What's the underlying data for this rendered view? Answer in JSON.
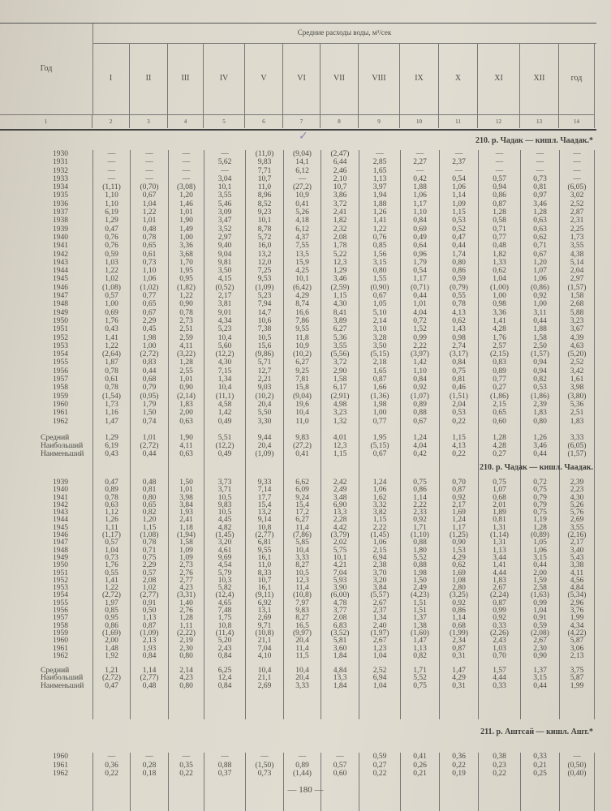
{
  "header": {
    "year_label": "Год",
    "title": "Средние расходы воды, м³/сек",
    "months": [
      "I",
      "II",
      "III",
      "IV",
      "V",
      "VI",
      "VII",
      "VIII",
      "IX",
      "X",
      "XI",
      "XII",
      "год"
    ],
    "col_numbers": [
      "1",
      "2",
      "3",
      "4",
      "5",
      "6",
      "7",
      "8",
      "9",
      "10",
      "11",
      "12",
      "13",
      "14"
    ]
  },
  "summary_labels": [
    "Средний",
    "Наибольший",
    "Наименьший"
  ],
  "sections": [
    {
      "caption": "210. р. Чадак — кишл. Чаадак.*",
      "rows": [
        [
          "1930",
          "—",
          "—",
          "—",
          "—",
          "(11,0)",
          "(9,04)",
          "(2,47)",
          "—",
          "—",
          "—",
          "—",
          "—",
          "—"
        ],
        [
          "1931",
          "—",
          "—",
          "—",
          "5,62",
          "9,83",
          "14,1",
          "6,44",
          "2,85",
          "2,27",
          "2,37",
          "—",
          "—",
          "—"
        ],
        [
          "1932",
          "—",
          "—",
          "—",
          "—",
          "7,71",
          "6,12",
          "2,46",
          "1,65",
          "—",
          "—",
          "—",
          "—",
          "—"
        ],
        [
          "1933",
          "—",
          "—",
          "—",
          "3,04",
          "10,7",
          "—",
          "2,10",
          "1,13",
          "0,42",
          "0,54",
          "0,57",
          "0,73",
          "—"
        ],
        [
          "1934",
          "(1,11)",
          "(0,70)",
          "(3,08)",
          "10,1",
          "11,0",
          "(27,2)",
          "10,7",
          "3,97",
          "1,88",
          "1,06",
          "0,94",
          "0,81",
          "(6,05)"
        ],
        [
          "1935",
          "1,10",
          "0,67",
          "1,20",
          "3,55",
          "8,96",
          "10,9",
          "3,86",
          "1,94",
          "1,06",
          "1,14",
          "0,86",
          "0,97",
          "3,02"
        ],
        [
          "1936",
          "1,10",
          "1,04",
          "1,46",
          "5,46",
          "8,52",
          "0,41",
          "3,72",
          "1,88",
          "1,17",
          "1,09",
          "0,87",
          "3,46",
          "2,52"
        ],
        [
          "1937",
          "6,19",
          "1,22",
          "1,01",
          "3,09",
          "9,23",
          "5,26",
          "2,41",
          "1,26",
          "1,10",
          "1,15",
          "1,28",
          "1,28",
          "2,87"
        ],
        [
          "1938",
          "1,29",
          "1,01",
          "1,90",
          "3,47",
          "10,1",
          "4,18",
          "1,82",
          "1,41",
          "0,84",
          "0,53",
          "0,58",
          "0,63",
          "2,31"
        ],
        [
          "1939",
          "0,47",
          "0,48",
          "1,49",
          "3,52",
          "8,78",
          "6,12",
          "2,32",
          "1,22",
          "0,69",
          "0,52",
          "0,71",
          "0,63",
          "2,25"
        ],
        [
          "1940",
          "0,76",
          "0,78",
          "1,00",
          "2,97",
          "5,72",
          "4,37",
          "2,08",
          "0,76",
          "0,49",
          "0,47",
          "0,77",
          "0,62",
          "1,73"
        ],
        [
          "1941",
          "0,76",
          "0,65",
          "3,36",
          "9,40",
          "16,0",
          "7,55",
          "1,78",
          "0,85",
          "0,64",
          "0,44",
          "0,48",
          "0,71",
          "3,55"
        ],
        [
          "1942",
          "0,59",
          "0,61",
          "3,68",
          "9,04",
          "13,2",
          "13,5",
          "5,22",
          "1,56",
          "0,96",
          "1,74",
          "1,82",
          "0,67",
          "4,38"
        ],
        [
          "1943",
          "1,03",
          "0,73",
          "1,70",
          "9,81",
          "12,0",
          "15,9",
          "12,3",
          "3,15",
          "1,79",
          "0,80",
          "1,33",
          "1,20",
          "5,14"
        ],
        [
          "1944",
          "1,22",
          "1,10",
          "1,95",
          "3,50",
          "7,25",
          "4,25",
          "1,29",
          "0,80",
          "0,54",
          "0,86",
          "0,62",
          "1,07",
          "2,04"
        ],
        [
          "1945",
          "1,02",
          "1,06",
          "0,95",
          "4,15",
          "9,53",
          "10,1",
          "3,46",
          "1,55",
          "1,17",
          "0,59",
          "1,04",
          "1,06",
          "2,97"
        ],
        [
          "1946",
          "(1,08)",
          "(1,02)",
          "(1,82)",
          "(0,52)",
          "(1,09)",
          "(6,42)",
          "(2,59)",
          "(0,90)",
          "(0,71)",
          "(0,79)",
          "(1,00)",
          "(0,86)",
          "(1,57)"
        ],
        [
          "1947",
          "0,57",
          "0,77",
          "1,22",
          "2,17",
          "5,23",
          "4,29",
          "1,15",
          "0,67",
          "0,44",
          "0,55",
          "1,00",
          "0,92",
          "1,58"
        ],
        [
          "1948",
          "1,00",
          "0,65",
          "0,90",
          "3,81",
          "7,94",
          "8,74",
          "4,30",
          "1,05",
          "1,01",
          "0,78",
          "0,98",
          "1,00",
          "2,68"
        ],
        [
          "1949",
          "0,69",
          "0,67",
          "0,78",
          "9,01",
          "14,7",
          "16,6",
          "8,41",
          "5,10",
          "4,04",
          "4,13",
          "3,36",
          "3,11",
          "5,88"
        ],
        [
          "1950",
          "1,76",
          "2,29",
          "2,73",
          "4,34",
          "10,6",
          "7,86",
          "3,89",
          "2,14",
          "0,72",
          "0,62",
          "1,41",
          "0,44",
          "3,23"
        ],
        [
          "1951",
          "0,43",
          "0,45",
          "2,51",
          "5,23",
          "7,38",
          "9,55",
          "6,27",
          "3,10",
          "1,52",
          "1,43",
          "4,28",
          "1,88",
          "3,67"
        ],
        [
          "1952",
          "1,41",
          "1,98",
          "2,59",
          "10,4",
          "10,5",
          "11,8",
          "5,36",
          "3,28",
          "0,99",
          "0,98",
          "1,76",
          "1,58",
          "4,39"
        ],
        [
          "1953",
          "1,22",
          "1,00",
          "4,11",
          "5,60",
          "15,6",
          "10,9",
          "3,55",
          "3,50",
          "2,22",
          "2,74",
          "2,57",
          "2,50",
          "4,63"
        ],
        [
          "1954",
          "(2,64)",
          "(2,72)",
          "(3,22)",
          "(12,2)",
          "(9,86)",
          "(10,2)",
          "(5,56)",
          "(5,15)",
          "(3,97)",
          "(3,17)",
          "(2,15)",
          "(1,57)",
          "(5,20)"
        ],
        [
          "1955",
          "1,87",
          "0,83",
          "1,28",
          "4,30",
          "5,71",
          "6,27",
          "3,72",
          "2,18",
          "1,42",
          "0,84",
          "0,83",
          "0,94",
          "2,52"
        ],
        [
          "1956",
          "0,78",
          "0,44",
          "2,55",
          "7,15",
          "12,7",
          "9,25",
          "2,90",
          "1,65",
          "1,10",
          "0,75",
          "0,89",
          "0,94",
          "3,42"
        ],
        [
          "1957",
          "0,61",
          "0,68",
          "1,01",
          "1,34",
          "2,21",
          "7,81",
          "1,58",
          "0,87",
          "0,84",
          "0,81",
          "0,77",
          "0,82",
          "1,61"
        ],
        [
          "1958",
          "0,78",
          "0,79",
          "0,90",
          "10,4",
          "9,03",
          "15,8",
          "6,17",
          "1,66",
          "0,92",
          "0,46",
          "0,27",
          "0,53",
          "3,98"
        ],
        [
          "1959",
          "(1,54)",
          "(0,95)",
          "(2,14)",
          "(11,1)",
          "(10,2)",
          "(9,04)",
          "(2,91)",
          "(1,36)",
          "(1,07)",
          "(1,51)",
          "(1,86)",
          "(1,86)",
          "(3,80)"
        ],
        [
          "1960",
          "1,73",
          "1,79",
          "1,83",
          "4,58",
          "20,4",
          "19,6",
          "4,98",
          "1,98",
          "0,89",
          "2,04",
          "2,15",
          "2,39",
          "5,36"
        ],
        [
          "1961",
          "1,16",
          "1,50",
          "2,00",
          "1,42",
          "5,50",
          "10,4",
          "3,23",
          "1,00",
          "0,88",
          "0,53",
          "0,65",
          "1,83",
          "2,51"
        ],
        [
          "1962",
          "1,47",
          "0,74",
          "0,63",
          "0,49",
          "3,30",
          "11,0",
          "1,32",
          "0,77",
          "0,67",
          "0,22",
          "0,60",
          "0,80",
          "1,83"
        ]
      ],
      "summary": [
        [
          "1,29",
          "1,01",
          "1,90",
          "5,51",
          "9,44",
          "9,83",
          "4,01",
          "1,95",
          "1,24",
          "1,15",
          "1,28",
          "1,26",
          "3,33"
        ],
        [
          "6,19",
          "(2,72)",
          "4,11",
          "(12,2)",
          "20,4",
          "(27,2)",
          "12,3",
          "(5,15)",
          "4,04",
          "4,13",
          "4,28",
          "3,46",
          "(6,05)"
        ],
        [
          "0,43",
          "0,44",
          "0,63",
          "0,49",
          "(1,09)",
          "0,41",
          "1,15",
          "0,67",
          "0,42",
          "0,22",
          "0,27",
          "0,44",
          "(1,57)"
        ]
      ]
    },
    {
      "caption": "210. р. Чадак — кишл. Чаадак.",
      "rows": [
        [
          "1939",
          "0,47",
          "0,48",
          "1,50",
          "3,73",
          "9,33",
          "6,62",
          "2,42",
          "1,24",
          "0,75",
          "0,70",
          "0,75",
          "0,72",
          "2,39"
        ],
        [
          "1940",
          "0,89",
          "0,81",
          "1,01",
          "3,71",
          "7,14",
          "6,09",
          "2,49",
          "1,06",
          "0,86",
          "0,87",
          "1,07",
          "0,75",
          "2,23"
        ],
        [
          "1941",
          "0,78",
          "0,80",
          "3,98",
          "10,5",
          "17,7",
          "9,24",
          "3,48",
          "1,62",
          "1,14",
          "0,92",
          "0,68",
          "0,79",
          "4,30"
        ],
        [
          "1942",
          "0,63",
          "0,65",
          "3,84",
          "9,83",
          "15,4",
          "15,4",
          "6,90",
          "3,32",
          "2,22",
          "2,17",
          "2,01",
          "0,79",
          "5,26"
        ],
        [
          "1943",
          "1,12",
          "0,82",
          "1,93",
          "10,5",
          "13,2",
          "17,2",
          "13,3",
          "3,82",
          "2,33",
          "1,69",
          "1,89",
          "0,75",
          "5,76"
        ],
        [
          "1944",
          "1,26",
          "1,20",
          "2,41",
          "4,45",
          "9,14",
          "6,27",
          "2,28",
          "1,15",
          "0,92",
          "1,24",
          "0,81",
          "1,19",
          "2,69"
        ],
        [
          "1945",
          "1,11",
          "1,15",
          "1,18",
          "4,82",
          "10,8",
          "11,4",
          "4,42",
          "2,22",
          "1,71",
          "1,17",
          "1,31",
          "1,28",
          "3,55"
        ],
        [
          "1946",
          "(1,17)",
          "(1,08)",
          "(1,94)",
          "(1,45)",
          "(2,77)",
          "(7,86)",
          "(3,79)",
          "(1,45)",
          "(1,10)",
          "(1,25)",
          "(1,14)",
          "(0,89)",
          "(2,16)"
        ],
        [
          "1947",
          "0,57",
          "0,78",
          "1,58",
          "3,20",
          "6,81",
          "5,85",
          "2,02",
          "1,06",
          "0,88",
          "0,90",
          "1,31",
          "1,05",
          "2,17"
        ],
        [
          "1948",
          "1,04",
          "0,71",
          "1,09",
          "4,61",
          "9,55",
          "10,4",
          "5,75",
          "2,15",
          "1,80",
          "1,53",
          "1,13",
          "1,06",
          "3,40"
        ],
        [
          "1949",
          "0,73",
          "0,75",
          "1,09",
          "9,69",
          "16,1",
          "3,33",
          "10,1",
          "6,94",
          "5,52",
          "4,29",
          "3,44",
          "3,15",
          "5,43"
        ],
        [
          "1950",
          "1,76",
          "2,29",
          "2,73",
          "4,54",
          "11,0",
          "8,27",
          "4,21",
          "2,38",
          "0,88",
          "0,62",
          "1,41",
          "0,44",
          "3,38"
        ],
        [
          "1951",
          "0,55",
          "0,57",
          "2,76",
          "5,79",
          "8,33",
          "10,5",
          "7,04",
          "3,70",
          "1,98",
          "1,69",
          "4,44",
          "2,00",
          "4,11"
        ],
        [
          "1952",
          "1,41",
          "2,08",
          "2,77",
          "10,3",
          "10,7",
          "12,3",
          "5,93",
          "3,20",
          "1,50",
          "1,08",
          "1,83",
          "1,59",
          "4,56"
        ],
        [
          "1953",
          "1,22",
          "1,02",
          "4,23",
          "5,82",
          "16,1",
          "11,4",
          "3,90",
          "3,84",
          "2,49",
          "2,80",
          "2,67",
          "2,58",
          "4,84"
        ],
        [
          "1954",
          "(2,72)",
          "(2,77)",
          "(3,31)",
          "(12,4)",
          "(9,11)",
          "(10,8)",
          "(6,00)",
          "(5,57)",
          "(4,23)",
          "(3,25)",
          "(2,24)",
          "(1,63)",
          "(5,34)"
        ],
        [
          "1955",
          "1,97",
          "0,91",
          "1,40",
          "4,65",
          "6,92",
          "7,97",
          "4,78",
          "2,67",
          "1,51",
          "0,92",
          "0,87",
          "0,99",
          "2,96"
        ],
        [
          "1956",
          "0,85",
          "0,50",
          "2,76",
          "7,48",
          "13,1",
          "9,83",
          "3,77",
          "2,37",
          "1,51",
          "0,86",
          "0,99",
          "1,04",
          "3,76"
        ],
        [
          "1957",
          "0,95",
          "1,13",
          "1,28",
          "1,75",
          "2,69",
          "8,27",
          "2,08",
          "1,34",
          "1,37",
          "1,14",
          "0,92",
          "0,91",
          "1,99"
        ],
        [
          "1958",
          "0,86",
          "0,87",
          "1,11",
          "10,8",
          "9,71",
          "16,5",
          "6,83",
          "2,40",
          "1,38",
          "0,68",
          "0,33",
          "0,59",
          "4,34"
        ],
        [
          "1959",
          "(1,69)",
          "(1,09)",
          "(2,22)",
          "(11,4)",
          "(10,8)",
          "(9,97)",
          "(3,52)",
          "(1,97)",
          "(1,60)",
          "(1,99)",
          "(2,26)",
          "(2,08)",
          "(4,22)"
        ],
        [
          "1960",
          "2,00",
          "2,13",
          "2,19",
          "5,20",
          "21,1",
          "20,4",
          "5,81",
          "2,67",
          "1,47",
          "2,34",
          "2,43",
          "2,67",
          "5,87"
        ],
        [
          "1961",
          "1,48",
          "1,93",
          "2,30",
          "2,43",
          "7,04",
          "11,4",
          "3,60",
          "1,23",
          "1,13",
          "0,87",
          "1,03",
          "2,30",
          "3,06"
        ],
        [
          "1962",
          "1,92",
          "0,84",
          "0,80",
          "0,84",
          "4,10",
          "11,5",
          "1,84",
          "1,04",
          "0,82",
          "0,31",
          "0,70",
          "0,90",
          "2,13"
        ]
      ],
      "summary": [
        [
          "1,21",
          "1,14",
          "2,14",
          "6,25",
          "10,4",
          "10,4",
          "4,84",
          "2,52",
          "1,71",
          "1,47",
          "1,57",
          "1,37",
          "3,75"
        ],
        [
          "(2,72)",
          "(2,77)",
          "4,23",
          "12,4",
          "21,1",
          "20,4",
          "13,3",
          "6,94",
          "5,52",
          "4,29",
          "4,44",
          "3,15",
          "5,87"
        ],
        [
          "0,47",
          "0,48",
          "0,80",
          "0,84",
          "2,69",
          "3,33",
          "1,84",
          "1,04",
          "0,75",
          "0,31",
          "0,33",
          "0,44",
          "1,99"
        ]
      ]
    },
    {
      "caption": "211. р. Аштсай — кишл. Ашт.*",
      "rows": [
        [
          "1960",
          "—",
          "—",
          "—",
          "—",
          "—",
          "—",
          "—",
          "0,59",
          "0,41",
          "0,36",
          "0,38",
          "0,33",
          "—"
        ],
        [
          "1961",
          "0,36",
          "0,28",
          "0,35",
          "0,88",
          "(1,50)",
          "0,89",
          "0,57",
          "0,27",
          "0,26",
          "0,22",
          "0,23",
          "0,21",
          "(0,50)"
        ],
        [
          "1962",
          "0,22",
          "0,18",
          "0,22",
          "0,37",
          "0,73",
          "(1,44)",
          "0,60",
          "0,22",
          "0,21",
          "0,19",
          "0,22",
          "0,25",
          "(0,40)"
        ]
      ],
      "summary": []
    }
  ],
  "page_number": "— 180 —"
}
